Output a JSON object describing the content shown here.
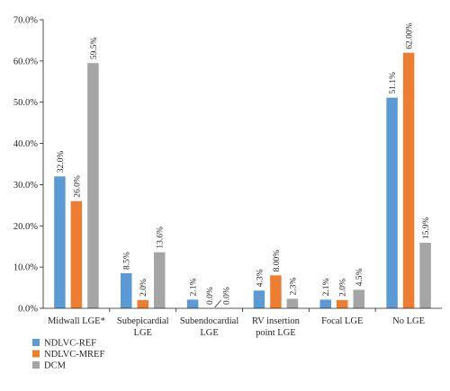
{
  "chart_data": {
    "type": "bar",
    "categories": [
      [
        "Midwall LGE*"
      ],
      [
        "Subepicardial",
        "LGE"
      ],
      [
        "Subendocardial",
        "LGE"
      ],
      [
        "RV insertion",
        "point LGE"
      ],
      [
        "Focal LGE"
      ],
      [
        "No LGE"
      ]
    ],
    "series": [
      {
        "name": "NDLVC-REF",
        "color": "#5b9bd5",
        "values": [
          32.0,
          8.5,
          2.1,
          4.3,
          2.1,
          51.1
        ],
        "labels": [
          "32.0%",
          "8.5%",
          "2.1%",
          "4.3%",
          "2.1%",
          "51.1%"
        ]
      },
      {
        "name": "NDLVC-MREF",
        "color": "#ed7d31",
        "values": [
          26.0,
          2.0,
          0.0,
          8.0,
          2.0,
          62.0
        ],
        "labels": [
          "26.0%",
          "2.0%",
          "0.0%",
          "8.00%",
          "2.0%",
          "62.00%"
        ]
      },
      {
        "name": "DCM",
        "color": "#a5a5a5",
        "values": [
          59.5,
          13.6,
          0.0,
          2.3,
          4.5,
          15.9
        ],
        "labels": [
          "59.5%",
          "13.6%",
          "0.0%",
          "2.3%",
          "4.5%",
          "15.9%"
        ]
      }
    ],
    "y_ticks": [
      "0.0%",
      "10.0%",
      "20.0%",
      "30.0%",
      "40.0%",
      "50.0%",
      "60.0%",
      "70.0%"
    ],
    "ylim": [
      0,
      70
    ],
    "grid": false,
    "legend_position": "bottom-left",
    "title": "",
    "xlabel": "",
    "ylabel": ""
  }
}
